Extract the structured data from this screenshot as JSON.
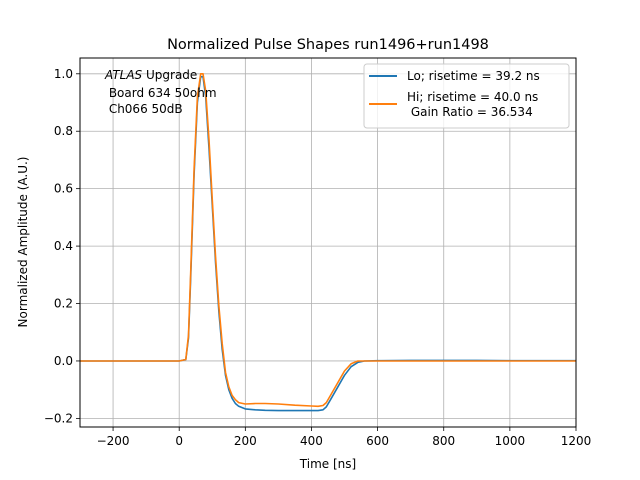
{
  "chart_data": {
    "type": "line",
    "title": "Normalized Pulse Shapes run1496+run1498",
    "xlabel": "Time [ns]",
    "ylabel": "Normalized Amplitude (A.U.)",
    "xlim": [
      -300,
      1200
    ],
    "ylim": [
      -0.23,
      1.055
    ],
    "grid": true,
    "legend_position": "top-right",
    "x_ticks": [
      -200,
      0,
      200,
      400,
      600,
      800,
      1000,
      1200
    ],
    "x_tick_labels": [
      "−200",
      "0",
      "200",
      "400",
      "600",
      "800",
      "1000",
      "1200"
    ],
    "y_ticks": [
      -0.2,
      0.0,
      0.2,
      0.4,
      0.6,
      0.8,
      1.0
    ],
    "y_tick_labels": [
      "−0.2",
      "0.0",
      "0.2",
      "0.4",
      "0.6",
      "0.8",
      "1.0"
    ],
    "annotation": {
      "atlas": "ATLAS",
      "upgrade": " Upgrade",
      "line2": " Board 634 50ohm",
      "line3": " Ch066 50dB"
    },
    "series": [
      {
        "name": "Lo; risetime = 39.2 ns",
        "color": "#1f77b4",
        "x": [
          -300,
          0,
          20,
          28,
          35,
          45,
          55,
          65,
          72,
          80,
          90,
          100,
          110,
          120,
          130,
          140,
          150,
          160,
          170,
          180,
          200,
          230,
          260,
          300,
          350,
          400,
          420,
          435,
          445,
          460,
          480,
          500,
          520,
          540,
          560,
          600,
          700,
          800,
          900,
          1000,
          1100,
          1200
        ],
        "y": [
          0.0,
          0.0,
          0.005,
          0.08,
          0.3,
          0.65,
          0.9,
          0.99,
          0.99,
          0.92,
          0.74,
          0.54,
          0.34,
          0.17,
          0.04,
          -0.05,
          -0.1,
          -0.13,
          -0.148,
          -0.158,
          -0.167,
          -0.17,
          -0.172,
          -0.173,
          -0.173,
          -0.173,
          -0.173,
          -0.17,
          -0.16,
          -0.13,
          -0.09,
          -0.05,
          -0.02,
          -0.005,
          0.0,
          0.001,
          0.002,
          0.002,
          0.002,
          0.001,
          0.001,
          0.001
        ]
      },
      {
        "name": "Hi; risetime = 40.0 ns\n Gain Ratio = 36.534",
        "color": "#ff7f0e",
        "x": [
          -300,
          0,
          20,
          28,
          35,
          45,
          55,
          65,
          72,
          80,
          90,
          100,
          110,
          120,
          130,
          140,
          150,
          160,
          170,
          180,
          200,
          230,
          260,
          300,
          350,
          400,
          420,
          435,
          445,
          460,
          480,
          500,
          520,
          540,
          560,
          600,
          700,
          800,
          900,
          1000,
          1100,
          1200
        ],
        "y": [
          0.0,
          0.0,
          0.005,
          0.09,
          0.32,
          0.67,
          0.92,
          1.0,
          1.0,
          0.94,
          0.77,
          0.56,
          0.36,
          0.19,
          0.06,
          -0.04,
          -0.09,
          -0.12,
          -0.135,
          -0.145,
          -0.15,
          -0.148,
          -0.148,
          -0.15,
          -0.154,
          -0.157,
          -0.158,
          -0.155,
          -0.145,
          -0.115,
          -0.075,
          -0.035,
          -0.01,
          0.0,
          0.0,
          0.0,
          0.0,
          0.0,
          0.0,
          0.0,
          0.0,
          0.0
        ]
      }
    ]
  }
}
